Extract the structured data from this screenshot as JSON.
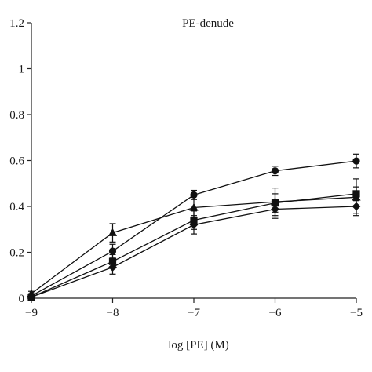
{
  "chart_data": {
    "type": "line",
    "title": "PE-denude",
    "xlabel": "log [PE] (M)",
    "ylabel": "",
    "xlim": [
      -9,
      -5
    ],
    "ylim": [
      0,
      1.2
    ],
    "x_ticks": [
      "-9",
      "-8",
      "-7",
      "-6",
      "-5"
    ],
    "y_ticks": [
      "0",
      "0.2",
      "0.4",
      "0.6",
      "0.8",
      "1",
      "1.2"
    ],
    "x": [
      -9,
      -8,
      -7,
      -6,
      -5
    ],
    "grid": false,
    "legend": "none",
    "series": [
      {
        "marker": "circle",
        "values": [
          0.01,
          0.205,
          0.45,
          0.555,
          0.598
        ],
        "errors": [
          0.01,
          0.03,
          0.02,
          0.02,
          0.03
        ]
      },
      {
        "marker": "triangle",
        "values": [
          0.02,
          0.285,
          0.395,
          0.42,
          0.44
        ],
        "errors": [
          0.01,
          0.04,
          0.05,
          0.06,
          0.08
        ]
      },
      {
        "marker": "square",
        "values": [
          0.005,
          0.16,
          0.34,
          0.415,
          0.455
        ],
        "errors": [
          0.01,
          0.03,
          0.04,
          0.04,
          0.03
        ]
      },
      {
        "marker": "diamond",
        "values": [
          0.005,
          0.135,
          0.32,
          0.388,
          0.4
        ],
        "errors": [
          0.01,
          0.03,
          0.04,
          0.04,
          0.03
        ]
      }
    ]
  }
}
